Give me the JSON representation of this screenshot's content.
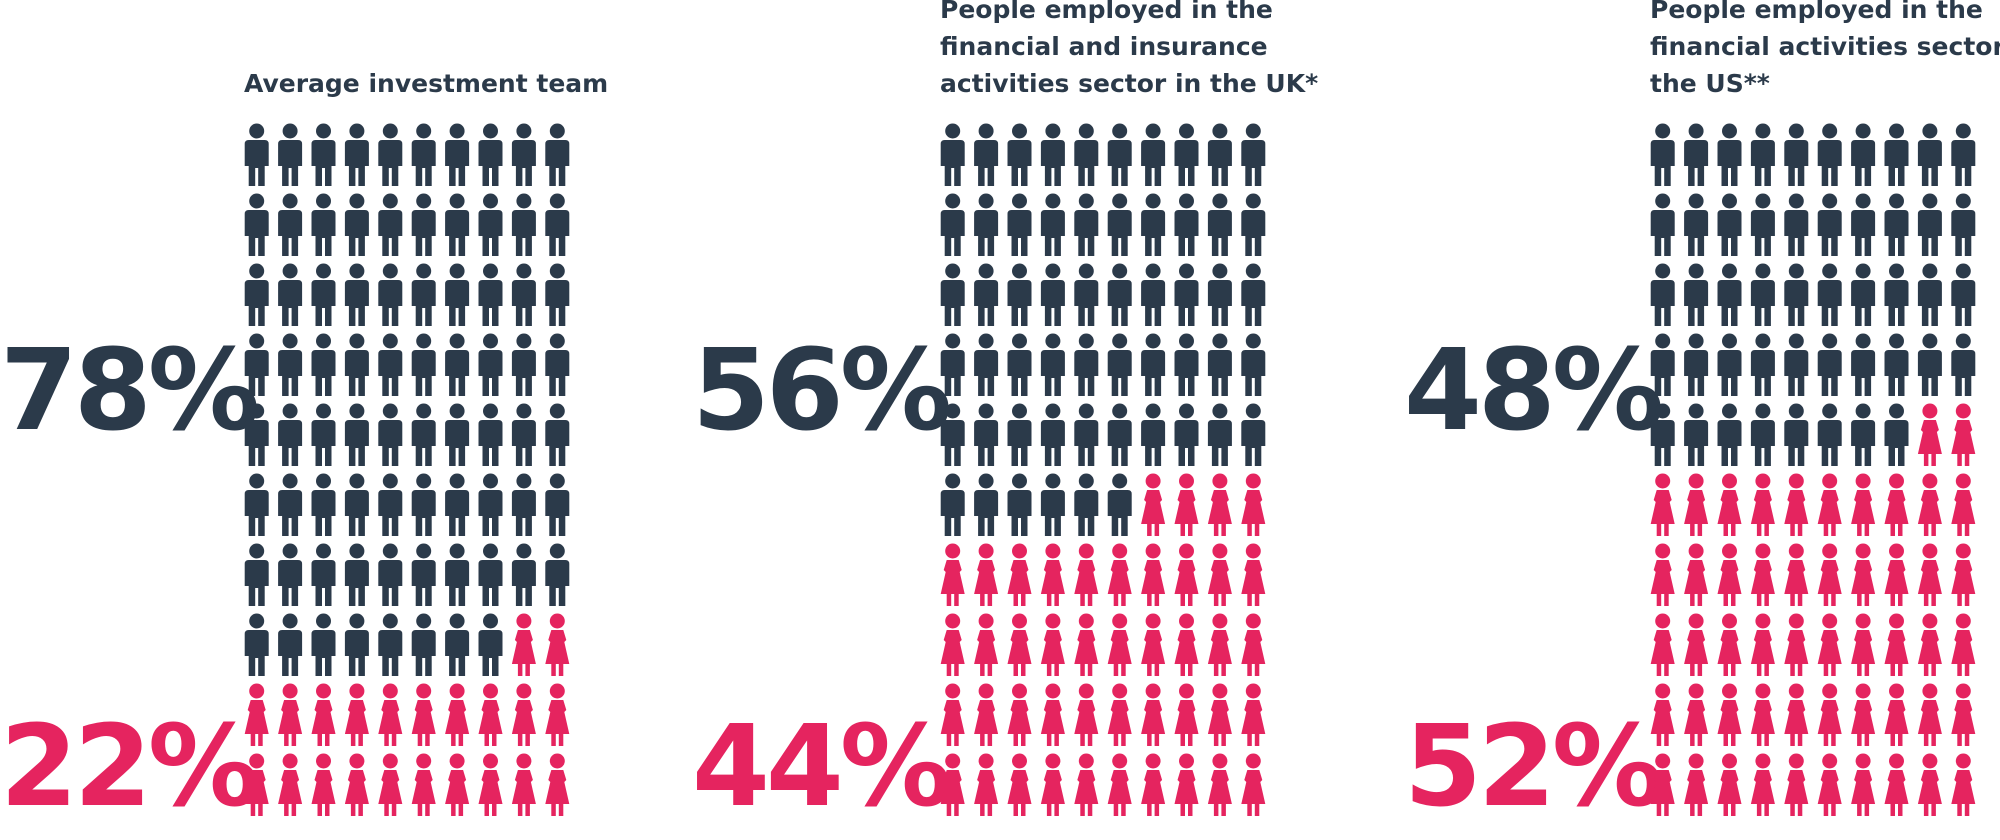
{
  "chart_data": [
    {
      "type": "pictograph",
      "title": [
        "Average investment team"
      ],
      "values": [
        78,
        22
      ],
      "value_labels": [
        "78%",
        "22%"
      ],
      "colors": [
        "#2b3a4a",
        "#e5245f"
      ]
    },
    {
      "type": "pictograph",
      "title": [
        "People employed in the",
        "financial and insurance",
        "activities sector in the UK*"
      ],
      "values": [
        56,
        44
      ],
      "value_labels": [
        "56%",
        "44%"
      ],
      "colors": [
        "#2b3a4a",
        "#e5245f"
      ]
    },
    {
      "type": "pictograph",
      "title": [
        "People employed in the",
        "financial activities sector in",
        "the US**"
      ],
      "values": [
        48,
        52
      ],
      "value_labels": [
        "48%",
        "52%"
      ],
      "colors": [
        "#2b3a4a",
        "#e5245f"
      ]
    }
  ]
}
